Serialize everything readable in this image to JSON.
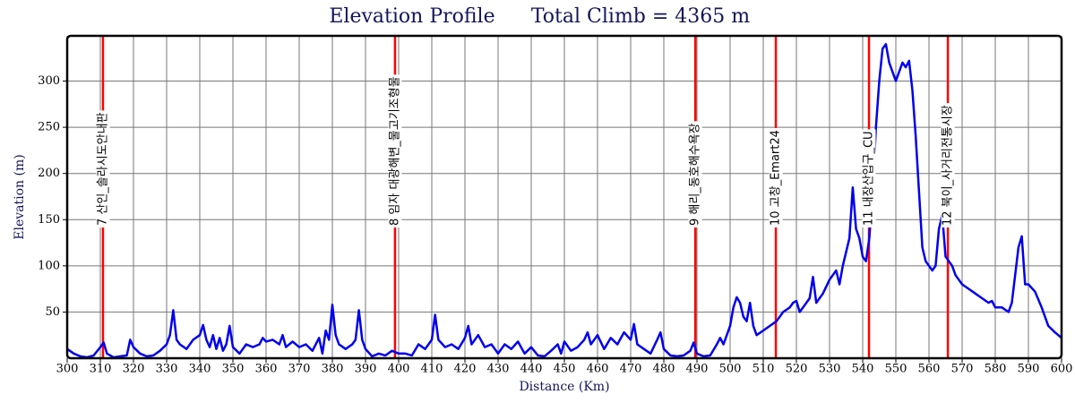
{
  "chart_data": {
    "type": "line",
    "title": "Elevation Profile",
    "subtitle": "Total Climb = 4365 m",
    "x_label": "Distance (Km)",
    "y_label": "Elevation (m)",
    "xlim": [
      300,
      600
    ],
    "xticks": [
      300,
      310,
      320,
      330,
      340,
      350,
      360,
      370,
      380,
      390,
      400,
      410,
      420,
      430,
      440,
      450,
      460,
      470,
      480,
      490,
      500,
      510,
      520,
      530,
      540,
      550,
      560,
      570,
      580,
      590,
      600
    ],
    "ylim": [
      0,
      349
    ],
    "yticks": [
      50,
      100,
      150,
      200,
      250,
      300
    ],
    "grid": true,
    "marker_color": "#ff0000",
    "markers": [
      {
        "x": 310.8,
        "label": "7 산인_솔라시도안내판"
      },
      {
        "x": 398.9,
        "label": "8 임자 대광해변_물고기조형물"
      },
      {
        "x": 489.5,
        "label": "9 해리_동호해수욕장"
      },
      {
        "x": 513.8,
        "label": "10 고창_Emart24"
      },
      {
        "x": 541.9,
        "label": "11 내장산입구_CU"
      },
      {
        "x": 565.7,
        "label": "12 북이_사거리전통시장"
      }
    ],
    "x": [
      300,
      302,
      304,
      306,
      308,
      310,
      311,
      312,
      314,
      316,
      318,
      319,
      320,
      322,
      324,
      326,
      328,
      330,
      331,
      332,
      333,
      334,
      336,
      338,
      340,
      341,
      342,
      343,
      344,
      345,
      346,
      347,
      348,
      349,
      350,
      352,
      354,
      356,
      358,
      359,
      360,
      362,
      364,
      365,
      366,
      368,
      370,
      372,
      374,
      376,
      377,
      378,
      379,
      380,
      381,
      382,
      384,
      386,
      387,
      388,
      389,
      390,
      392,
      394,
      396,
      398,
      400,
      402,
      404,
      406,
      408,
      410,
      411,
      412,
      414,
      416,
      418,
      420,
      421,
      422,
      424,
      426,
      428,
      430,
      432,
      434,
      436,
      438,
      440,
      442,
      444,
      446,
      448,
      449,
      450,
      452,
      454,
      456,
      457,
      458,
      460,
      462,
      464,
      466,
      468,
      470,
      471,
      472,
      474,
      476,
      478,
      479,
      480,
      482,
      484,
      486,
      488,
      489,
      490,
      492,
      494,
      496,
      497,
      498,
      500,
      501,
      502,
      503,
      504,
      505,
      506,
      507,
      508,
      510,
      512,
      514,
      516,
      518,
      519,
      520,
      521,
      522,
      524,
      525,
      526,
      528,
      530,
      532,
      533,
      534,
      536,
      537,
      538,
      539,
      540,
      541,
      542,
      543,
      544,
      545,
      546,
      547,
      548,
      550,
      552,
      553,
      554,
      555,
      556,
      557,
      558,
      559,
      560,
      561,
      562,
      563,
      564,
      565,
      566,
      567,
      568,
      570,
      572,
      574,
      576,
      578,
      579,
      580,
      582,
      584,
      585,
      586,
      587,
      588,
      589,
      590,
      592,
      594,
      596,
      598,
      600
    ],
    "series": [
      {
        "name": "Elevation",
        "color": "#0000ee",
        "values": [
          10,
          5,
          2,
          1,
          3,
          12,
          17,
          5,
          1,
          2,
          3,
          20,
          12,
          5,
          2,
          3,
          8,
          15,
          25,
          52,
          20,
          15,
          10,
          20,
          25,
          36,
          20,
          12,
          25,
          10,
          22,
          8,
          15,
          35,
          12,
          5,
          15,
          12,
          15,
          22,
          18,
          20,
          15,
          25,
          12,
          18,
          12,
          15,
          8,
          22,
          5,
          30,
          20,
          58,
          25,
          15,
          10,
          15,
          20,
          52,
          20,
          10,
          2,
          5,
          3,
          8,
          5,
          5,
          3,
          15,
          10,
          20,
          47,
          20,
          12,
          15,
          10,
          22,
          35,
          15,
          25,
          12,
          15,
          5,
          15,
          10,
          18,
          5,
          12,
          3,
          2,
          8,
          15,
          5,
          18,
          8,
          12,
          20,
          28,
          15,
          25,
          10,
          22,
          15,
          28,
          20,
          37,
          15,
          10,
          5,
          20,
          28,
          10,
          3,
          2,
          3,
          8,
          17,
          5,
          2,
          3,
          15,
          22,
          15,
          35,
          55,
          66,
          60,
          45,
          40,
          60,
          35,
          25,
          30,
          35,
          40,
          50,
          55,
          60,
          62,
          50,
          55,
          65,
          88,
          60,
          70,
          85,
          95,
          80,
          100,
          130,
          185,
          140,
          130,
          110,
          105,
          130,
          180,
          250,
          300,
          335,
          340,
          320,
          300,
          320,
          315,
          322,
          290,
          240,
          180,
          120,
          105,
          100,
          95,
          100,
          140,
          155,
          110,
          105,
          100,
          90,
          80,
          75,
          70,
          65,
          60,
          62,
          55,
          55,
          50,
          60,
          90,
          120,
          132,
          80,
          80,
          72,
          55,
          35,
          28,
          22
        ]
      }
    ]
  }
}
